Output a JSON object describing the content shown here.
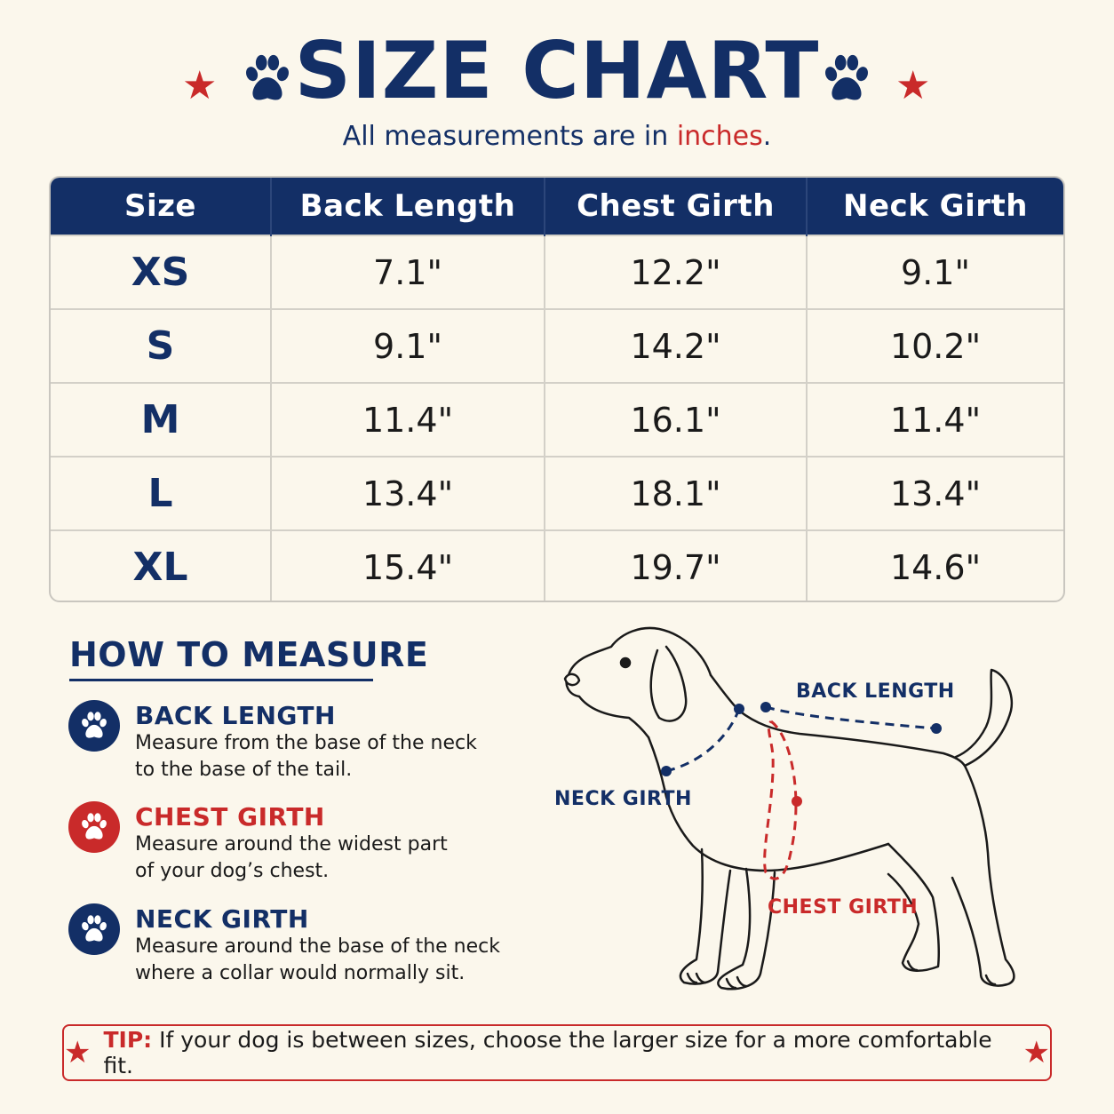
{
  "header": {
    "title": "SIZE CHART",
    "subtitle_prefix": "All measurements are in ",
    "subtitle_accent": "inches",
    "subtitle_suffix": "."
  },
  "table": {
    "columns": [
      "Size",
      "Back Length",
      "Chest Girth",
      "Neck Girth"
    ],
    "rows": [
      [
        "XS",
        "7.1\"",
        "12.2\"",
        "9.1\""
      ],
      [
        "S",
        "9.1\"",
        "14.2\"",
        "10.2\""
      ],
      [
        "M",
        "11.4\"",
        "16.1\"",
        "11.4\""
      ],
      [
        "L",
        "13.4\"",
        "18.1\"",
        "13.4\""
      ],
      [
        "XL",
        "15.4\"",
        "19.7\"",
        "14.6\""
      ]
    ]
  },
  "how_to_measure": {
    "heading": "HOW TO MEASURE",
    "items": [
      {
        "title": "BACK LENGTH",
        "desc_line1": "Measure from the base of the neck",
        "desc_line2": "to the base of the tail.",
        "color": "#132f66"
      },
      {
        "title": "CHEST GIRTH",
        "desc_line1": "Measure around the widest part",
        "desc_line2": "of your dog’s chest.",
        "color": "#c92a2a"
      },
      {
        "title": "NECK GIRTH",
        "desc_line1": "Measure around the base of the neck",
        "desc_line2": "where a collar would normally sit.",
        "color": "#132f66"
      }
    ]
  },
  "diagram": {
    "back_length_label": "BACK LENGTH",
    "neck_girth_label": "NECK GIRTH",
    "chest_girth_label": "CHEST GIRTH"
  },
  "tip": {
    "label": "TIP:",
    "text": "If your dog is between sizes, choose the larger size for a more comfortable fit."
  },
  "colors": {
    "navy": "#132f66",
    "red": "#c92a2a",
    "background": "#fbf7ec"
  },
  "icons": [
    "star-icon",
    "paw-icon"
  ]
}
